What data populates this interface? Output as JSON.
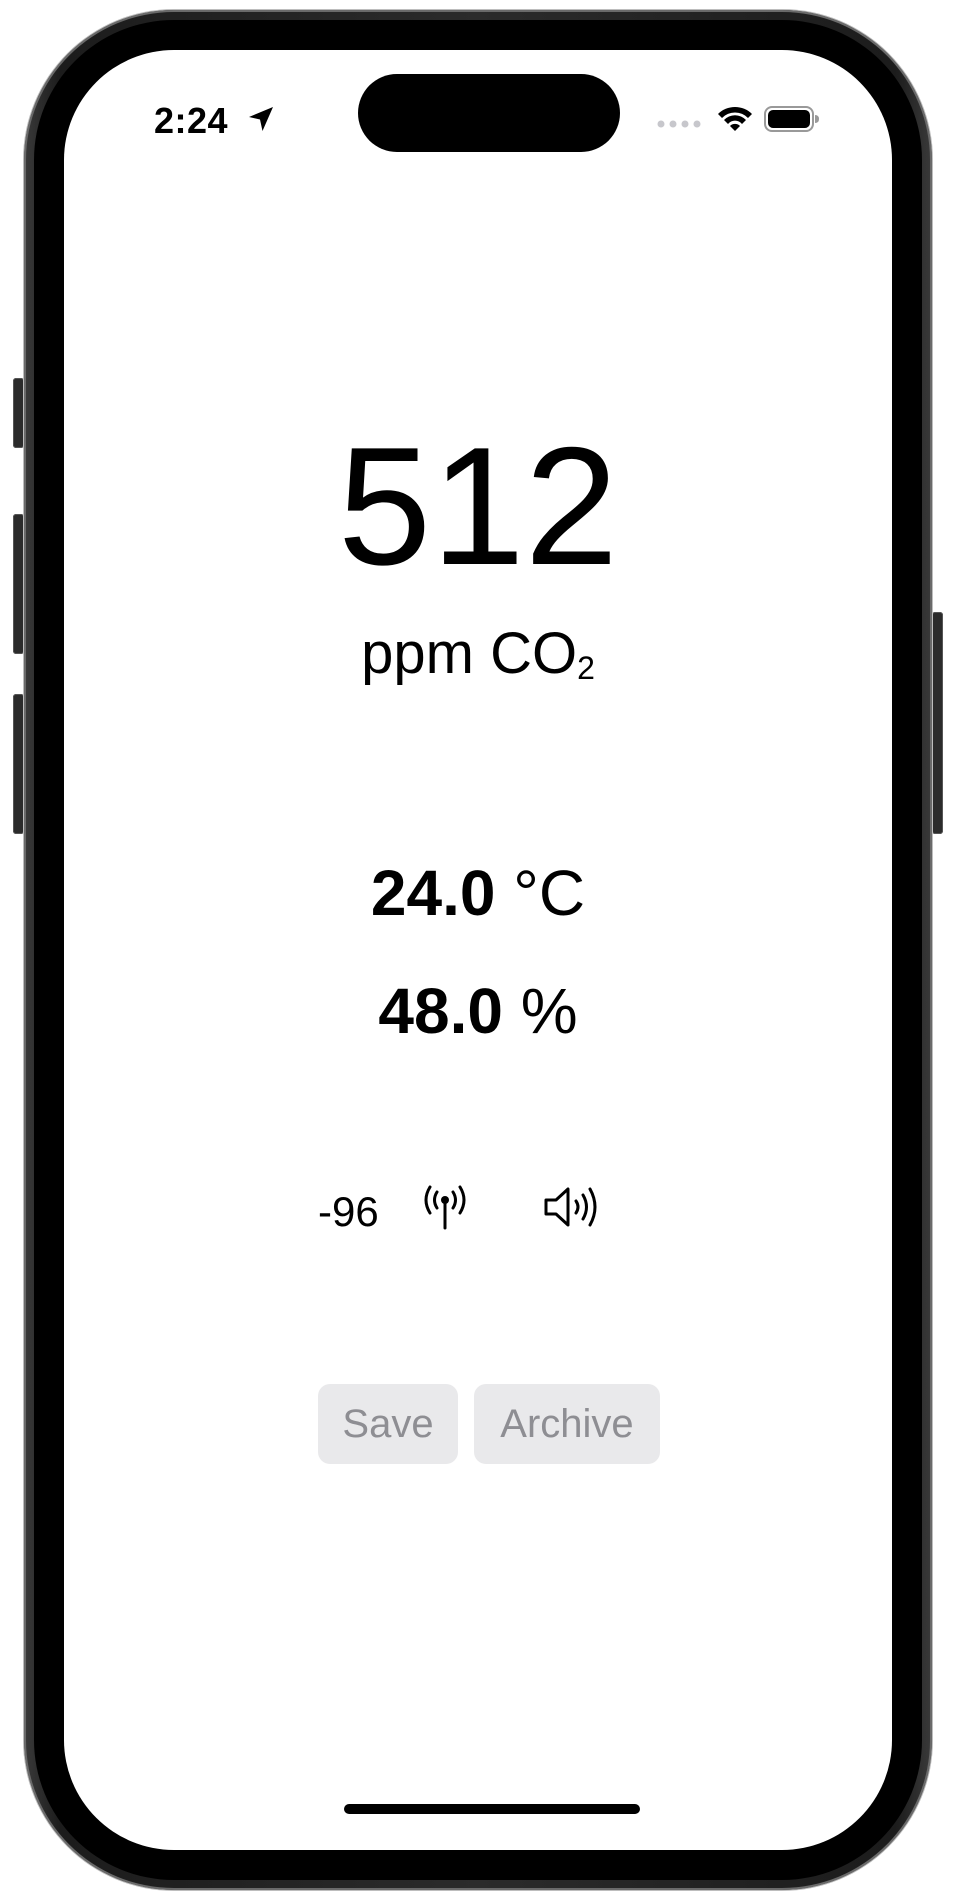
{
  "status_bar": {
    "time": "2:24",
    "icons": [
      "location-arrow-icon",
      "cellular-dots-icon",
      "wifi-icon",
      "battery-icon"
    ]
  },
  "co2": {
    "value": "512",
    "unit_main": "ppm CO",
    "unit_sub": "2"
  },
  "temperature": {
    "value": "24.0",
    "unit": "°C"
  },
  "humidity": {
    "value": "48.0",
    "unit": "%"
  },
  "signal": {
    "rssi": "-96",
    "icons": [
      "antenna-icon",
      "speaker-icon"
    ]
  },
  "actions": {
    "save_label": "Save",
    "archive_label": "Archive"
  },
  "colors": {
    "button_bg": "#e9e9eb",
    "button_text": "#8e8e93",
    "text": "#000000",
    "background": "#ffffff"
  }
}
